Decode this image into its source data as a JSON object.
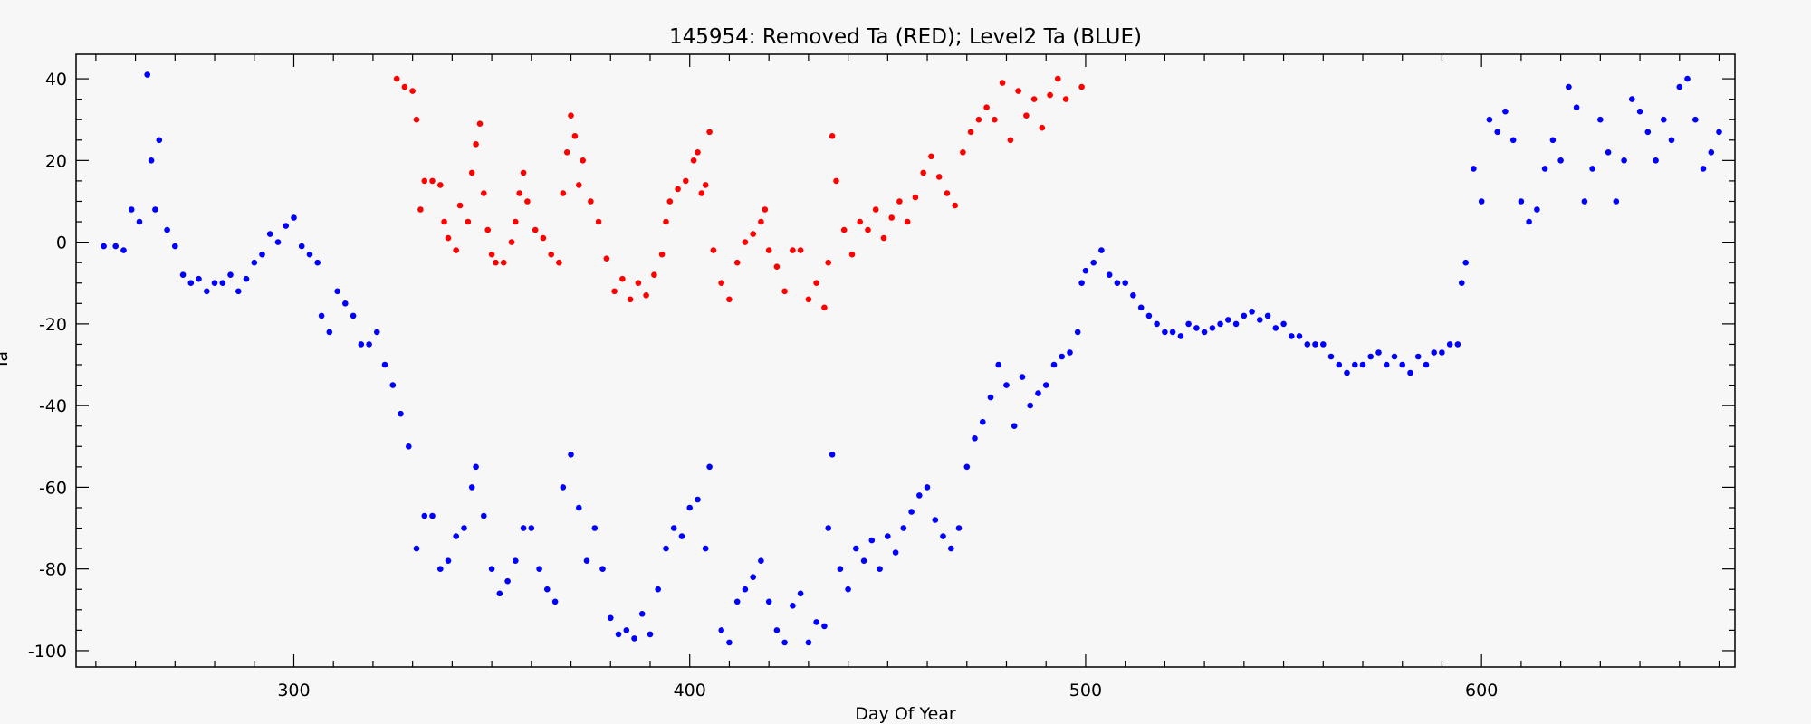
{
  "chart_data": {
    "type": "scatter",
    "title": "145954: Removed Ta (RED); Level2 Ta (BLUE)",
    "xlabel": "Day Of Year",
    "ylabel": "Ta",
    "xlim": [
      245,
      664
    ],
    "ylim": [
      -104,
      46
    ],
    "xticks": [
      300,
      400,
      500,
      600
    ],
    "yticks": [
      40,
      20,
      0,
      -20,
      -40,
      -60,
      -80,
      -100
    ],
    "grid": false,
    "legend": "none",
    "series": [
      {
        "color": "#ff0000",
        "points": [
          [
            326,
            40
          ],
          [
            328,
            38
          ],
          [
            330,
            37
          ],
          [
            331,
            30
          ],
          [
            332,
            8
          ],
          [
            333,
            15
          ],
          [
            335,
            15
          ],
          [
            337,
            14
          ],
          [
            338,
            5
          ],
          [
            339,
            1
          ],
          [
            341,
            -2
          ],
          [
            342,
            9
          ],
          [
            344,
            5
          ],
          [
            345,
            17
          ],
          [
            346,
            24
          ],
          [
            347,
            29
          ],
          [
            348,
            12
          ],
          [
            349,
            3
          ],
          [
            350,
            -3
          ],
          [
            351,
            -5
          ],
          [
            353,
            -5
          ],
          [
            355,
            0
          ],
          [
            356,
            5
          ],
          [
            357,
            12
          ],
          [
            358,
            17
          ],
          [
            359,
            10
          ],
          [
            361,
            3
          ],
          [
            363,
            1
          ],
          [
            365,
            -3
          ],
          [
            367,
            -5
          ],
          [
            368,
            12
          ],
          [
            369,
            22
          ],
          [
            370,
            31
          ],
          [
            371,
            26
          ],
          [
            372,
            14
          ],
          [
            373,
            20
          ],
          [
            375,
            10
          ],
          [
            377,
            5
          ],
          [
            379,
            -4
          ],
          [
            381,
            -12
          ],
          [
            383,
            -9
          ],
          [
            385,
            -14
          ],
          [
            387,
            -10
          ],
          [
            389,
            -13
          ],
          [
            391,
            -8
          ],
          [
            393,
            -3
          ],
          [
            394,
            5
          ],
          [
            395,
            10
          ],
          [
            397,
            13
          ],
          [
            399,
            15
          ],
          [
            401,
            20
          ],
          [
            402,
            22
          ],
          [
            403,
            12
          ],
          [
            404,
            14
          ],
          [
            405,
            27
          ],
          [
            406,
            -2
          ],
          [
            408,
            -10
          ],
          [
            410,
            -14
          ],
          [
            412,
            -5
          ],
          [
            414,
            0
          ],
          [
            416,
            2
          ],
          [
            418,
            5
          ],
          [
            419,
            8
          ],
          [
            420,
            -2
          ],
          [
            422,
            -6
          ],
          [
            424,
            -12
          ],
          [
            426,
            -2
          ],
          [
            428,
            -2
          ],
          [
            430,
            -14
          ],
          [
            432,
            -10
          ],
          [
            434,
            -16
          ],
          [
            435,
            -5
          ],
          [
            436,
            26
          ],
          [
            437,
            15
          ],
          [
            439,
            3
          ],
          [
            441,
            -3
          ],
          [
            443,
            5
          ],
          [
            445,
            3
          ],
          [
            447,
            8
          ],
          [
            449,
            1
          ],
          [
            451,
            6
          ],
          [
            453,
            10
          ],
          [
            455,
            5
          ],
          [
            457,
            11
          ],
          [
            459,
            17
          ],
          [
            461,
            21
          ],
          [
            463,
            16
          ],
          [
            465,
            12
          ],
          [
            467,
            9
          ],
          [
            469,
            22
          ],
          [
            471,
            27
          ],
          [
            473,
            30
          ],
          [
            475,
            33
          ],
          [
            477,
            30
          ],
          [
            479,
            39
          ],
          [
            481,
            25
          ],
          [
            483,
            37
          ],
          [
            485,
            31
          ],
          [
            487,
            35
          ],
          [
            489,
            28
          ],
          [
            491,
            36
          ],
          [
            493,
            40
          ],
          [
            495,
            35
          ],
          [
            499,
            38
          ]
        ]
      },
      {
        "color": "#0000ff",
        "points": [
          [
            252,
            -1
          ],
          [
            255,
            -1
          ],
          [
            257,
            -2
          ],
          [
            259,
            8
          ],
          [
            261,
            5
          ],
          [
            263,
            41
          ],
          [
            264,
            20
          ],
          [
            265,
            8
          ],
          [
            266,
            25
          ],
          [
            268,
            3
          ],
          [
            270,
            -1
          ],
          [
            272,
            -8
          ],
          [
            274,
            -10
          ],
          [
            276,
            -9
          ],
          [
            278,
            -12
          ],
          [
            280,
            -10
          ],
          [
            282,
            -10
          ],
          [
            284,
            -8
          ],
          [
            286,
            -12
          ],
          [
            288,
            -9
          ],
          [
            290,
            -5
          ],
          [
            292,
            -3
          ],
          [
            294,
            2
          ],
          [
            296,
            0
          ],
          [
            298,
            4
          ],
          [
            300,
            6
          ],
          [
            302,
            -1
          ],
          [
            304,
            -3
          ],
          [
            306,
            -5
          ],
          [
            307,
            -18
          ],
          [
            309,
            -22
          ],
          [
            311,
            -12
          ],
          [
            313,
            -15
          ],
          [
            315,
            -18
          ],
          [
            317,
            -25
          ],
          [
            319,
            -25
          ],
          [
            321,
            -22
          ],
          [
            323,
            -30
          ],
          [
            325,
            -35
          ],
          [
            327,
            -42
          ],
          [
            329,
            -50
          ],
          [
            331,
            -75
          ],
          [
            333,
            -67
          ],
          [
            335,
            -67
          ],
          [
            337,
            -80
          ],
          [
            339,
            -78
          ],
          [
            341,
            -72
          ],
          [
            343,
            -70
          ],
          [
            345,
            -60
          ],
          [
            346,
            -55
          ],
          [
            348,
            -67
          ],
          [
            350,
            -80
          ],
          [
            352,
            -86
          ],
          [
            354,
            -83
          ],
          [
            356,
            -78
          ],
          [
            358,
            -70
          ],
          [
            360,
            -70
          ],
          [
            362,
            -80
          ],
          [
            364,
            -85
          ],
          [
            366,
            -88
          ],
          [
            368,
            -60
          ],
          [
            370,
            -52
          ],
          [
            372,
            -65
          ],
          [
            374,
            -78
          ],
          [
            376,
            -70
          ],
          [
            378,
            -80
          ],
          [
            380,
            -92
          ],
          [
            382,
            -96
          ],
          [
            384,
            -95
          ],
          [
            386,
            -97
          ],
          [
            388,
            -91
          ],
          [
            390,
            -96
          ],
          [
            392,
            -85
          ],
          [
            394,
            -75
          ],
          [
            396,
            -70
          ],
          [
            398,
            -72
          ],
          [
            400,
            -65
          ],
          [
            402,
            -63
          ],
          [
            404,
            -75
          ],
          [
            405,
            -55
          ],
          [
            408,
            -95
          ],
          [
            410,
            -98
          ],
          [
            412,
            -88
          ],
          [
            414,
            -85
          ],
          [
            416,
            -82
          ],
          [
            418,
            -78
          ],
          [
            420,
            -88
          ],
          [
            422,
            -95
          ],
          [
            424,
            -98
          ],
          [
            426,
            -89
          ],
          [
            428,
            -86
          ],
          [
            430,
            -98
          ],
          [
            432,
            -93
          ],
          [
            434,
            -94
          ],
          [
            435,
            -70
          ],
          [
            436,
            -52
          ],
          [
            438,
            -80
          ],
          [
            440,
            -85
          ],
          [
            442,
            -75
          ],
          [
            444,
            -78
          ],
          [
            446,
            -73
          ],
          [
            448,
            -80
          ],
          [
            450,
            -72
          ],
          [
            452,
            -76
          ],
          [
            454,
            -70
          ],
          [
            456,
            -66
          ],
          [
            458,
            -62
          ],
          [
            460,
            -60
          ],
          [
            462,
            -68
          ],
          [
            464,
            -72
          ],
          [
            466,
            -75
          ],
          [
            468,
            -70
          ],
          [
            470,
            -55
          ],
          [
            472,
            -48
          ],
          [
            474,
            -44
          ],
          [
            476,
            -38
          ],
          [
            478,
            -30
          ],
          [
            480,
            -35
          ],
          [
            482,
            -45
          ],
          [
            484,
            -33
          ],
          [
            486,
            -40
          ],
          [
            488,
            -37
          ],
          [
            490,
            -35
          ],
          [
            492,
            -30
          ],
          [
            494,
            -28
          ],
          [
            496,
            -27
          ],
          [
            498,
            -22
          ],
          [
            499,
            -10
          ],
          [
            500,
            -7
          ],
          [
            502,
            -5
          ],
          [
            504,
            -2
          ],
          [
            506,
            -8
          ],
          [
            508,
            -10
          ],
          [
            510,
            -10
          ],
          [
            512,
            -13
          ],
          [
            514,
            -16
          ],
          [
            516,
            -18
          ],
          [
            518,
            -20
          ],
          [
            520,
            -22
          ],
          [
            522,
            -22
          ],
          [
            524,
            -23
          ],
          [
            526,
            -20
          ],
          [
            528,
            -21
          ],
          [
            530,
            -22
          ],
          [
            532,
            -21
          ],
          [
            534,
            -20
          ],
          [
            536,
            -19
          ],
          [
            538,
            -20
          ],
          [
            540,
            -18
          ],
          [
            542,
            -17
          ],
          [
            544,
            -19
          ],
          [
            546,
            -18
          ],
          [
            548,
            -21
          ],
          [
            550,
            -20
          ],
          [
            552,
            -23
          ],
          [
            554,
            -23
          ],
          [
            556,
            -25
          ],
          [
            558,
            -25
          ],
          [
            560,
            -25
          ],
          [
            562,
            -28
          ],
          [
            564,
            -30
          ],
          [
            566,
            -32
          ],
          [
            568,
            -30
          ],
          [
            570,
            -30
          ],
          [
            572,
            -28
          ],
          [
            574,
            -27
          ],
          [
            576,
            -30
          ],
          [
            578,
            -28
          ],
          [
            580,
            -30
          ],
          [
            582,
            -32
          ],
          [
            584,
            -28
          ],
          [
            586,
            -30
          ],
          [
            588,
            -27
          ],
          [
            590,
            -27
          ],
          [
            592,
            -25
          ],
          [
            594,
            -25
          ],
          [
            595,
            -10
          ],
          [
            596,
            -5
          ],
          [
            598,
            18
          ],
          [
            600,
            10
          ],
          [
            602,
            30
          ],
          [
            604,
            27
          ],
          [
            606,
            32
          ],
          [
            608,
            25
          ],
          [
            610,
            10
          ],
          [
            612,
            5
          ],
          [
            614,
            8
          ],
          [
            616,
            18
          ],
          [
            618,
            25
          ],
          [
            620,
            20
          ],
          [
            622,
            38
          ],
          [
            624,
            33
          ],
          [
            626,
            10
          ],
          [
            628,
            18
          ],
          [
            630,
            30
          ],
          [
            632,
            22
          ],
          [
            634,
            10
          ],
          [
            636,
            20
          ],
          [
            638,
            35
          ],
          [
            640,
            32
          ],
          [
            642,
            27
          ],
          [
            644,
            20
          ],
          [
            646,
            30
          ],
          [
            648,
            25
          ],
          [
            650,
            38
          ],
          [
            652,
            40
          ],
          [
            654,
            30
          ],
          [
            656,
            18
          ],
          [
            658,
            22
          ],
          [
            660,
            27
          ]
        ]
      }
    ]
  }
}
